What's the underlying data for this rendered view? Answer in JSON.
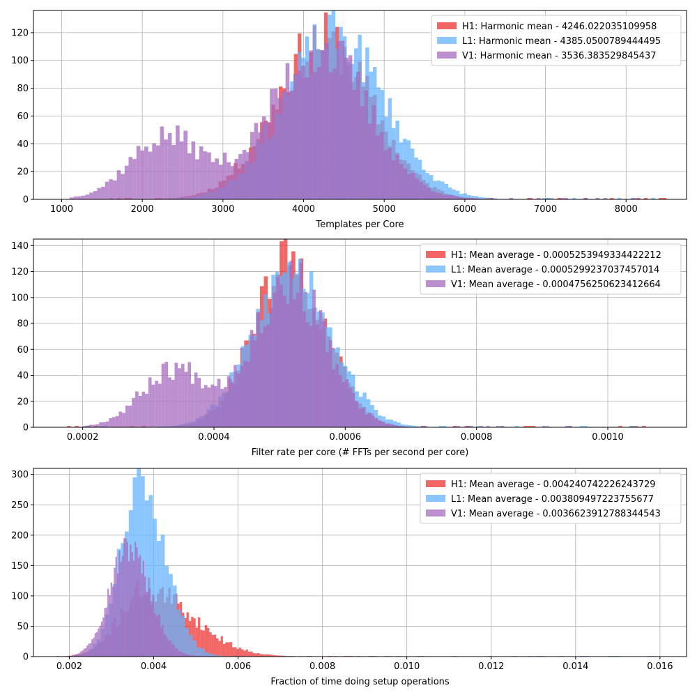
{
  "chart_data": [
    {
      "type": "histogram",
      "xlabel": "Templates per Core",
      "ylabel": "",
      "xlim": [
        650,
        8750
      ],
      "ylim": [
        0,
        136
      ],
      "xticks": [
        1000,
        2000,
        3000,
        4000,
        5000,
        6000,
        7000,
        8000
      ],
      "yticks": [
        0,
        20,
        40,
        60,
        80,
        100,
        120
      ],
      "grid": true,
      "legend_position": "upper-right",
      "series": [
        {
          "name": "H1: Harmonic mean  - 4246.022035109958",
          "color": "#ee3333",
          "center": 4246,
          "spread": 600,
          "peak": 115,
          "noise": 0.18,
          "seed": 11,
          "range": [
            1500,
            8500
          ],
          "bins": 150
        },
        {
          "name": "L1: Harmonic mean  - 4385.0500789444495",
          "color": "#66b3ff",
          "center": 4385,
          "spread": 620,
          "peak": 118,
          "noise": 0.17,
          "seed": 23,
          "range": [
            1500,
            8500
          ],
          "bins": 150
        },
        {
          "name": "V1: Harmonic mean  - 3536.383529845437",
          "color": "#a66bbe",
          "components": [
            {
              "center": 4200,
              "spread": 600,
              "peak": 108
            },
            {
              "center": 2300,
              "spread": 450,
              "peak": 45
            }
          ],
          "noise": 0.2,
          "seed": 37,
          "range": [
            1100,
            8400
          ],
          "bins": 150
        }
      ]
    },
    {
      "type": "histogram",
      "xlabel": "Filter rate per core (# FFTs per second per core)",
      "ylabel": "",
      "xlim": [
        0.000125,
        0.00112
      ],
      "ylim": [
        0,
        145
      ],
      "xticks": [
        0.0002,
        0.0004,
        0.0006,
        0.0008,
        0.001
      ],
      "xtick_labels": [
        "0.0002",
        "0.0004",
        "0.0006",
        "0.0008",
        "0.0010"
      ],
      "yticks": [
        0,
        20,
        40,
        60,
        80,
        100,
        120,
        140
      ],
      "grid": true,
      "legend_position": "upper-right",
      "series": [
        {
          "name": "H1: Mean average - 0.0005253949334422212",
          "color": "#ee3333",
          "center": 0.000515,
          "spread": 5.5e-05,
          "peak": 128,
          "noise": 0.18,
          "seed": 41,
          "range": [
            0.00017,
            0.00107
          ],
          "bins": 150
        },
        {
          "name": "L1: Mean average - 0.0005299237037457014",
          "color": "#66b3ff",
          "center": 0.00052,
          "spread": 6e-05,
          "peak": 122,
          "noise": 0.17,
          "seed": 53,
          "range": [
            0.00018,
            0.00105
          ],
          "bins": 150
        },
        {
          "name": "V1: Mean average - 0.0004756250623412664",
          "color": "#a66bbe",
          "components": [
            {
              "center": 0.000515,
              "spread": 5.5e-05,
              "peak": 112
            },
            {
              "center": 0.00034,
              "spread": 5e-05,
              "peak": 45
            }
          ],
          "noise": 0.2,
          "seed": 67,
          "range": [
            0.0002,
            0.00095
          ],
          "bins": 150
        }
      ]
    },
    {
      "type": "histogram",
      "xlabel": "Fraction of time doing setup operations",
      "ylabel": "",
      "xlim": [
        0.00115,
        0.01663
      ],
      "ylim": [
        0,
        310
      ],
      "xticks": [
        0.002,
        0.004,
        0.006,
        0.008,
        0.01,
        0.012,
        0.014,
        0.016
      ],
      "xtick_labels": [
        "0.002",
        "0.004",
        "0.006",
        "0.008",
        "0.010",
        "0.012",
        "0.014",
        "0.016"
      ],
      "yticks": [
        0,
        50,
        100,
        150,
        200,
        250,
        300
      ],
      "grid": true,
      "legend_position": "upper-right",
      "series": [
        {
          "name": "H1: Mean average - 0.004240742226243729",
          "color": "#ee3333",
          "center": 0.0038,
          "spread": 0.0006,
          "peak": 110,
          "tail": 0.0011,
          "noise": 0.2,
          "seed": 71,
          "range": [
            0.0017,
            0.0098
          ],
          "bins": 150
        },
        {
          "name": "L1: Mean average - 0.003809497223755677",
          "color": "#66b3ff",
          "center": 0.00365,
          "spread": 0.00045,
          "peak": 285,
          "tail": 0.0006,
          "noise": 0.12,
          "seed": 83,
          "range": [
            0.0018,
            0.016
          ],
          "bins": 150
        },
        {
          "name": "V1: Mean average - 0.0036623912788344543",
          "color": "#a66bbe",
          "center": 0.0034,
          "spread": 0.00045,
          "peak": 180,
          "tail": 0.0005,
          "noise": 0.15,
          "seed": 97,
          "range": [
            0.0018,
            0.0075
          ],
          "bins": 150
        }
      ]
    }
  ]
}
